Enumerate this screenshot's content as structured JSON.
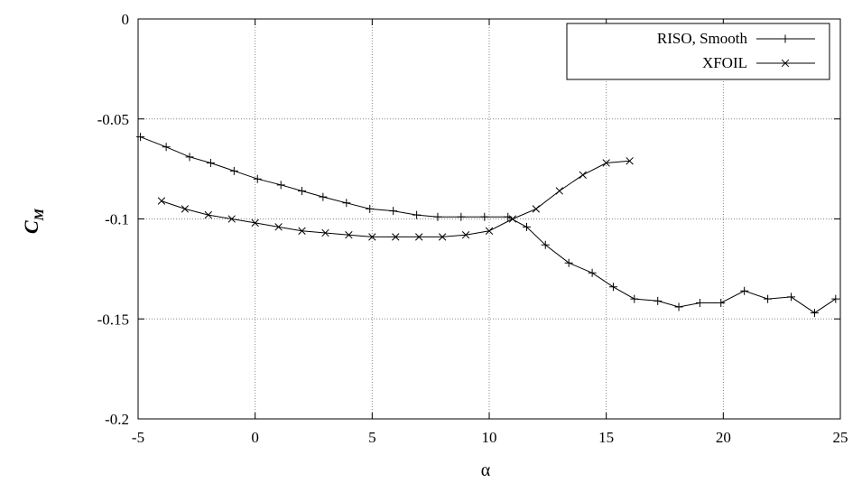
{
  "chart_data": {
    "type": "line",
    "xlabel": "α",
    "ylabel": "C",
    "ylabel_sub": "M",
    "xlim": [
      -5,
      25
    ],
    "ylim": [
      -0.2,
      0
    ],
    "xticks": [
      -5,
      0,
      5,
      10,
      15,
      20,
      25
    ],
    "xtick_labels": [
      "-5",
      "0",
      "5",
      "10",
      "15",
      "20",
      "25"
    ],
    "yticks": [
      0,
      -0.05,
      -0.1,
      -0.15,
      -0.2
    ],
    "ytick_labels": [
      "0",
      "-0.05",
      "-0.1",
      "-0.15",
      "-0.2"
    ],
    "grid": true,
    "legend_position": "top-right",
    "series": [
      {
        "name": "RISO, Smooth",
        "marker": "plus",
        "x": [
          -4.9,
          -3.8,
          -2.8,
          -1.9,
          -0.9,
          0.1,
          1.1,
          2.0,
          2.9,
          3.9,
          4.9,
          5.9,
          6.9,
          7.8,
          8.8,
          9.8,
          10.8,
          11.6,
          12.4,
          13.4,
          14.4,
          15.3,
          16.2,
          17.2,
          18.1,
          19.0,
          19.9,
          20.9,
          21.9,
          22.9,
          23.9,
          24.8
        ],
        "y": [
          -0.059,
          -0.064,
          -0.069,
          -0.072,
          -0.076,
          -0.08,
          -0.083,
          -0.086,
          -0.089,
          -0.092,
          -0.095,
          -0.096,
          -0.098,
          -0.099,
          -0.099,
          -0.099,
          -0.099,
          -0.104,
          -0.113,
          -0.122,
          -0.127,
          -0.134,
          -0.14,
          -0.141,
          -0.144,
          -0.142,
          -0.142,
          -0.136,
          -0.14,
          -0.139,
          -0.147,
          -0.14
        ]
      },
      {
        "name": "XFOIL",
        "marker": "x",
        "x": [
          -4,
          -3,
          -2,
          -1,
          0,
          1,
          2,
          3,
          4,
          5,
          6,
          7,
          8,
          9,
          10,
          11,
          12,
          13,
          14,
          15,
          16
        ],
        "y": [
          -0.091,
          -0.095,
          -0.098,
          -0.1,
          -0.102,
          -0.104,
          -0.106,
          -0.107,
          -0.108,
          -0.109,
          -0.109,
          -0.109,
          -0.109,
          -0.108,
          -0.106,
          -0.1,
          -0.095,
          -0.086,
          -0.078,
          -0.072,
          -0.071
        ]
      }
    ]
  }
}
